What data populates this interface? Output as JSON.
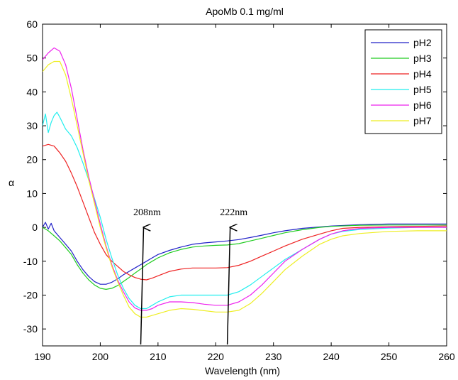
{
  "chart_data": {
    "type": "line",
    "title": "ApoMb 0.1 mg/ml",
    "xlabel": "Wavelength (nm)",
    "ylabel": "α",
    "xlim": [
      190,
      260
    ],
    "ylim": [
      -35,
      60
    ],
    "xticks": [
      190,
      200,
      210,
      220,
      230,
      240,
      250,
      260
    ],
    "yticks": [
      -30,
      -20,
      -10,
      0,
      10,
      20,
      30,
      40,
      50,
      60
    ],
    "grid": false,
    "legend_position": "top-right",
    "series": [
      {
        "name": "pH2",
        "color": "#2020c8",
        "x": [
          190,
          190.5,
          191,
          191.5,
          192,
          193,
          194,
          195,
          196,
          197,
          198,
          199,
          200,
          201,
          202,
          203,
          204,
          205,
          206,
          207,
          208,
          209,
          210,
          212,
          214,
          216,
          218,
          220,
          222,
          224,
          226,
          228,
          230,
          232,
          235,
          240,
          245,
          250,
          255,
          260
        ],
        "y": [
          0,
          1.5,
          -0.5,
          1.2,
          -1,
          -3,
          -5,
          -7,
          -10,
          -12.5,
          -14.5,
          -16,
          -16.8,
          -16.8,
          -16.2,
          -15.2,
          -14,
          -13,
          -12,
          -11,
          -10,
          -9,
          -8,
          -6.8,
          -5.8,
          -5,
          -4.6,
          -4.3,
          -4,
          -3.6,
          -3,
          -2.3,
          -1.6,
          -1,
          -0.3,
          0.4,
          0.8,
          1,
          1,
          1
        ]
      },
      {
        "name": "pH3",
        "color": "#22cc22",
        "x": [
          190,
          191,
          192,
          193,
          194,
          195,
          196,
          197,
          198,
          199,
          200,
          201,
          202,
          203,
          204,
          205,
          206,
          207,
          208,
          209,
          210,
          212,
          214,
          216,
          218,
          220,
          222,
          224,
          226,
          228,
          230,
          232,
          235,
          238,
          240,
          245,
          250,
          255,
          260
        ],
        "y": [
          0,
          -1,
          -2.5,
          -4,
          -6,
          -8,
          -11,
          -13.5,
          -15.5,
          -17,
          -18,
          -18.3,
          -18,
          -17.2,
          -16,
          -14.8,
          -13.5,
          -12.3,
          -11,
          -10,
          -9,
          -7.5,
          -6.5,
          -5.8,
          -5.5,
          -5.3,
          -5.2,
          -4.8,
          -4,
          -3.2,
          -2.4,
          -1.6,
          -0.7,
          0,
          0.3,
          0.6,
          0.7,
          0.7,
          0.7
        ]
      },
      {
        "name": "pH4",
        "color": "#ee2222",
        "x": [
          190,
          191,
          192,
          193,
          194,
          195,
          196,
          197,
          198,
          199,
          200,
          201,
          202,
          203,
          204,
          205,
          206,
          207,
          208,
          209,
          210,
          212,
          214,
          216,
          218,
          220,
          222,
          224,
          226,
          228,
          230,
          232,
          235,
          238,
          240,
          242,
          245,
          250,
          255,
          260
        ],
        "y": [
          24,
          24.5,
          24,
          22,
          19.5,
          16,
          12,
          7.5,
          3,
          -1.5,
          -5,
          -8,
          -10,
          -11.5,
          -13,
          -14,
          -14.8,
          -15.3,
          -15.5,
          -15,
          -14.3,
          -13,
          -12.3,
          -12,
          -12,
          -12,
          -11.9,
          -11.2,
          -10,
          -8.5,
          -7,
          -5.5,
          -3.5,
          -2,
          -1,
          -0.3,
          0,
          0.2,
          0.3,
          0.4
        ]
      },
      {
        "name": "pH5",
        "color": "#22eeee",
        "x": [
          190,
          190.5,
          191,
          191.5,
          192,
          192.5,
          193,
          194,
          195,
          196,
          197,
          198,
          199,
          200,
          201,
          202,
          203,
          204,
          205,
          206,
          207,
          208,
          209,
          210,
          212,
          214,
          216,
          218,
          220,
          222,
          224,
          226,
          228,
          230,
          232,
          235,
          238,
          240,
          242,
          245,
          250,
          255,
          260
        ],
        "y": [
          30,
          33.5,
          28,
          31,
          33,
          34,
          32.5,
          29,
          27,
          23.5,
          19,
          14,
          8.5,
          3,
          -3.5,
          -9,
          -14,
          -18,
          -21,
          -23,
          -24,
          -24,
          -23,
          -22,
          -20.5,
          -20,
          -20,
          -20,
          -20,
          -20,
          -19,
          -17,
          -14.5,
          -12,
          -9.5,
          -6.5,
          -3.5,
          -2,
          -1.2,
          -0.6,
          -0.2,
          0,
          0
        ]
      },
      {
        "name": "pH6",
        "color": "#ee22ee",
        "x": [
          190,
          191,
          192,
          193,
          194,
          195,
          196,
          197,
          198,
          199,
          200,
          201,
          202,
          203,
          204,
          205,
          206,
          207,
          208,
          209,
          210,
          212,
          214,
          216,
          218,
          220,
          222,
          224,
          226,
          228,
          230,
          232,
          235,
          238,
          240,
          242,
          245,
          250,
          255,
          260
        ],
        "y": [
          49.5,
          51.5,
          53,
          52,
          48,
          41,
          32,
          23,
          15,
          8,
          1,
          -5.5,
          -11,
          -15.5,
          -19,
          -22,
          -23.8,
          -24.5,
          -24.5,
          -24,
          -23,
          -22,
          -22,
          -22.2,
          -22.7,
          -23,
          -23,
          -22,
          -20,
          -17,
          -13.5,
          -10,
          -6.5,
          -3.5,
          -2,
          -1,
          -0.3,
          0,
          0,
          0
        ]
      },
      {
        "name": "pH7",
        "color": "#eeee22",
        "x": [
          190,
          191,
          192,
          193,
          194,
          195,
          196,
          197,
          198,
          199,
          200,
          201,
          202,
          203,
          204,
          205,
          206,
          207,
          208,
          209,
          210,
          212,
          214,
          216,
          218,
          220,
          222,
          224,
          226,
          228,
          230,
          232,
          235,
          238,
          240,
          242,
          245,
          250,
          255,
          260
        ],
        "y": [
          46,
          48,
          49,
          49,
          45,
          38,
          30,
          22,
          14,
          7,
          0,
          -6,
          -11.5,
          -16,
          -20,
          -23.5,
          -25.5,
          -26.5,
          -26.5,
          -26,
          -25.5,
          -24.5,
          -24,
          -24.2,
          -24.6,
          -25,
          -25,
          -24.5,
          -22.5,
          -19.5,
          -16,
          -12.5,
          -8.5,
          -5,
          -3.5,
          -2.5,
          -1.8,
          -1.2,
          -1,
          -1
        ]
      }
    ],
    "annotations": [
      {
        "text": "208nm",
        "arrow_x": 207.5,
        "arrow_y_from": -35,
        "arrow_y_to": 0
      },
      {
        "text": "222nm",
        "arrow_x": 222.5,
        "arrow_y_from": -35,
        "arrow_y_to": 0
      }
    ]
  }
}
